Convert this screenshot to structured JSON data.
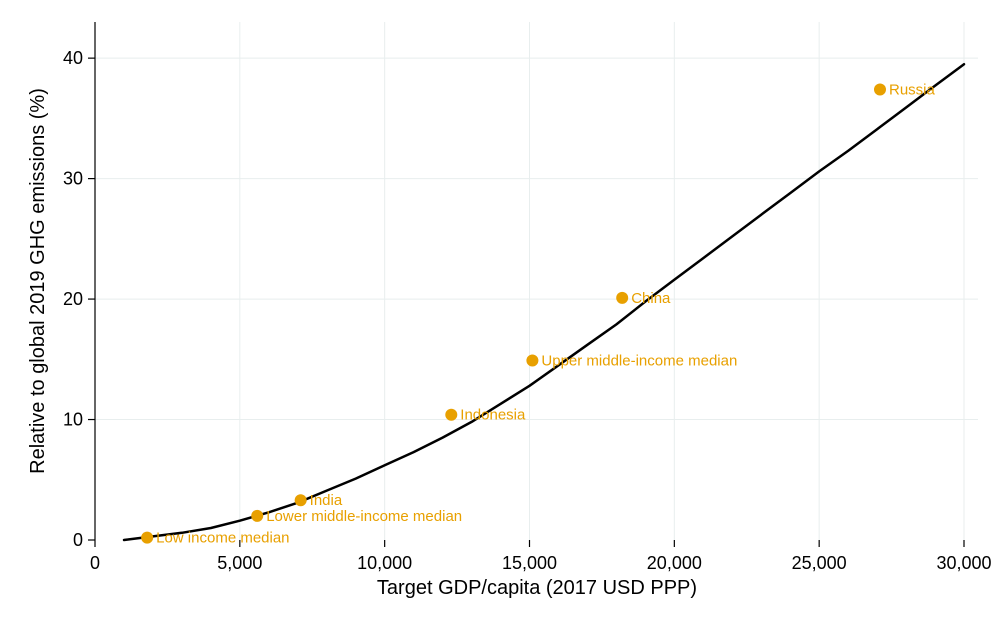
{
  "colors": {
    "curve": "#000000",
    "marker": "#e8a000",
    "grid": "#e8eeee",
    "background": "#ffffff"
  },
  "chart_data": {
    "type": "line",
    "xlabel": "Target GDP/capita (2017 USD PPP)",
    "ylabel": "Relative to global 2019 GHG emissions (%)",
    "xlim": [
      0,
      30000
    ],
    "ylim": [
      0,
      43
    ],
    "xticks": [
      0,
      5000,
      10000,
      15000,
      20000,
      25000,
      30000
    ],
    "xtick_labels": [
      "0",
      "5,000",
      "10,000",
      "15,000",
      "20,000",
      "25,000",
      "30,000"
    ],
    "yticks": [
      0,
      10,
      20,
      30,
      40
    ],
    "ytick_labels": [
      "0",
      "10",
      "20",
      "30",
      "40"
    ],
    "grid": true,
    "series": [
      {
        "x": [
          1000,
          2000,
          3000,
          4000,
          5000,
          6000,
          7000,
          8000,
          9000,
          10000,
          11000,
          12000,
          13000,
          14000,
          15000,
          16000,
          17000,
          18000,
          19000,
          20000,
          21000,
          22000,
          23000,
          24000,
          25000,
          26000,
          27000,
          28000,
          29000,
          30000
        ],
        "y": [
          0.0,
          0.3,
          0.6,
          1.0,
          1.6,
          2.3,
          3.1,
          4.1,
          5.1,
          6.2,
          7.3,
          8.5,
          9.8,
          11.3,
          12.8,
          14.5,
          16.2,
          17.9,
          19.8,
          21.6,
          23.4,
          25.2,
          27.0,
          28.8,
          30.6,
          32.3,
          34.1,
          35.9,
          37.7,
          39.5
        ]
      }
    ],
    "points": [
      {
        "label": "Low income median",
        "x": 1800,
        "y": 0.2
      },
      {
        "label": "Lower middle-income median",
        "x": 5600,
        "y": 2.0
      },
      {
        "label": "India",
        "x": 7100,
        "y": 3.3
      },
      {
        "label": "Indonesia",
        "x": 12300,
        "y": 10.4
      },
      {
        "label": "Upper middle-income median",
        "x": 15100,
        "y": 14.9
      },
      {
        "label": "China",
        "x": 18200,
        "y": 20.1
      },
      {
        "label": "Russia",
        "x": 27100,
        "y": 37.4
      }
    ]
  }
}
